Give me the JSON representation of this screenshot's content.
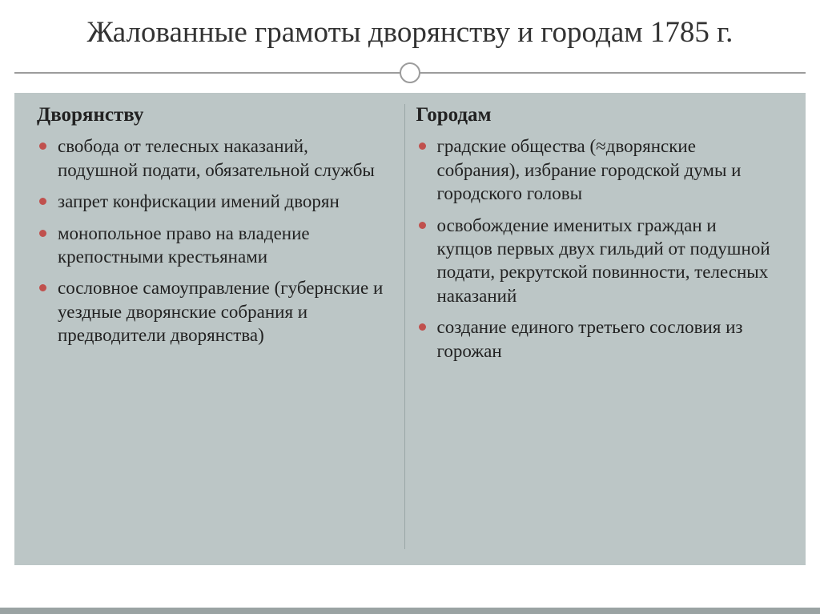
{
  "title": "Жалованные грамоты дворянству и городам 1785 г.",
  "columns": [
    {
      "heading": "Дворянству",
      "items": [
        "свобода от телесных наказаний, подушной подати, обязательной службы",
        "запрет конфискации имений дворян",
        "монопольное право на владение крепостными крестьянами",
        "сословное самоуправление (губернские и уездные дворянские собрания и предводители дворянства)"
      ]
    },
    {
      "heading": "Городам",
      "items": [
        "градские общества (≈дворянские собрания), избрание городской думы и городского головы",
        "освобождение именитых граждан и купцов первых двух гильдий от подушной подати, рекрутской повинности, телесных наказаний",
        "создание единого третьего сословия из горожан"
      ]
    }
  ],
  "style": {
    "slide_bg": "#ffffff",
    "content_bg": "#bcc6c6",
    "title_color": "#333333",
    "title_fontsize": 37,
    "heading_fontsize": 25,
    "body_fontsize": 23,
    "text_color": "#222222",
    "bullet_color": "#c0504d",
    "separator_color": "#9c9c9c",
    "column_divider_color": "#9aa7a7",
    "bottom_bar_color": "#9aa3a3"
  }
}
